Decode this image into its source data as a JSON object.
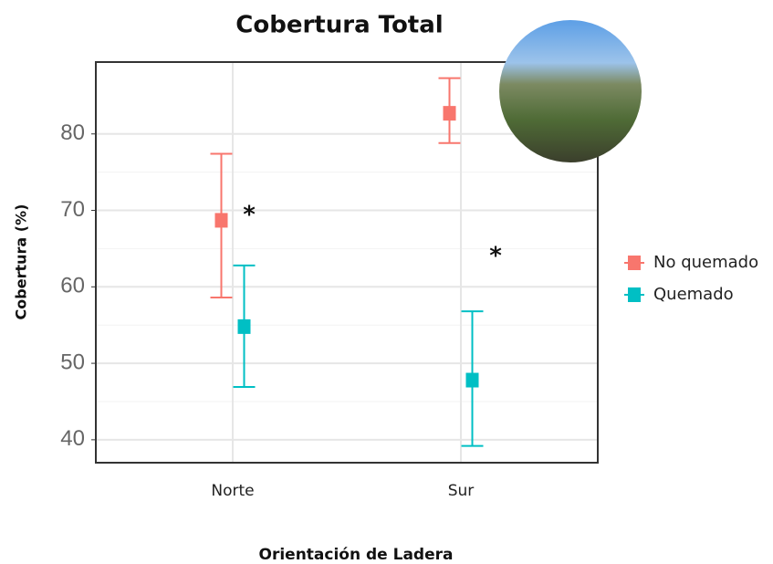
{
  "chart_data": {
    "type": "errorbar",
    "title": "Cobertura Total",
    "x_label": "Orientación de Ladera",
    "y_label": "Cobertura (%)",
    "categories": [
      "Norte",
      "Sur"
    ],
    "series": [
      {
        "name": "No quemado",
        "color": "#f8766d",
        "values": [
          68.7,
          82.7
        ],
        "lower": [
          58.6,
          78.8
        ],
        "upper": [
          77.4,
          87.3
        ]
      },
      {
        "name": "Quemado",
        "color": "#00bfc4",
        "values": [
          54.8,
          47.8
        ],
        "lower": [
          46.9,
          39.2
        ],
        "upper": [
          62.8,
          56.8
        ]
      }
    ],
    "annotations": [
      "*",
      "*"
    ],
    "ylim": [
      37,
      89.4
    ],
    "yticks": [
      40,
      50,
      60,
      70,
      80
    ],
    "grid": true
  }
}
